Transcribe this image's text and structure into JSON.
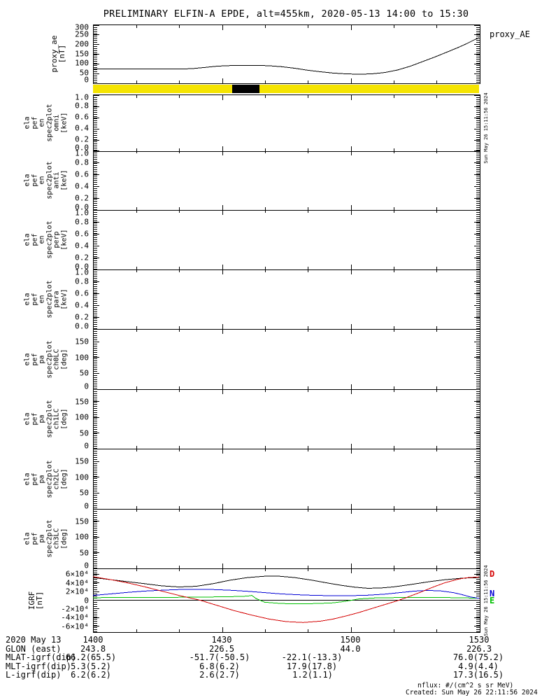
{
  "title": "PRELIMINARY ELFIN-A EPDE, alt=455km, 2020-05-13 14:00 to 15:30",
  "side_timestamp": "Sun May 26 15:11:56 2024",
  "footer": {
    "units_note": "nflux: #/(cm^2 s sr MeV)",
    "created": "Created: Sun May 26 22:11:56 2024"
  },
  "colors": {
    "axis": "#000000",
    "mode_bar_yellow": "#f5e400",
    "mode_bar_segment": "#000000",
    "igrf_total": "#000000",
    "igrf_d": "#d40000",
    "igrf_n": "#0000d4",
    "igrf_e": "#00c000"
  },
  "panels": [
    {
      "id": "proxy_ae",
      "ylabel": [
        "proxy_ae",
        "[nT]"
      ],
      "ylim": [
        0,
        300
      ],
      "right_label": "proxy_AE",
      "yticks": [
        {
          "v": 0,
          "label": "0"
        },
        {
          "v": 50,
          "label": "50"
        },
        {
          "v": 100,
          "label": "100"
        },
        {
          "v": 150,
          "label": "150"
        },
        {
          "v": 200,
          "label": "200"
        },
        {
          "v": 250,
          "label": "250"
        },
        {
          "v": 300,
          "label": "300"
        }
      ]
    },
    {
      "id": "mode_bar",
      "color": "#f5e400",
      "segments": [
        {
          "start_min": 32.4,
          "end_min": 38.8,
          "color": "#000000"
        }
      ]
    },
    {
      "id": "ela_pef_en_spec2plot_omni",
      "ylabel": [
        "ela",
        "pef",
        "en",
        "spec2plot",
        "omni",
        "[keV]"
      ],
      "ylim": [
        0,
        1
      ],
      "yticks": [
        {
          "v": 0,
          "label": "0.0"
        },
        {
          "v": 0.2,
          "label": "0.2"
        },
        {
          "v": 0.4,
          "label": "0.4"
        },
        {
          "v": 0.6,
          "label": "0.6"
        },
        {
          "v": 0.8,
          "label": "0.8"
        },
        {
          "v": 1,
          "label": "1.0"
        }
      ]
    },
    {
      "id": "ela_pef_en_spec2plot_anti",
      "ylabel": [
        "ela",
        "pef",
        "en",
        "spec2plot",
        "anti",
        "[keV]"
      ],
      "ylim": [
        0,
        1
      ],
      "yticks": [
        {
          "v": 0,
          "label": "0.0"
        },
        {
          "v": 0.2,
          "label": "0.2"
        },
        {
          "v": 0.4,
          "label": "0.4"
        },
        {
          "v": 0.6,
          "label": "0.6"
        },
        {
          "v": 0.8,
          "label": "0.8"
        },
        {
          "v": 1,
          "label": "1.0"
        }
      ]
    },
    {
      "id": "ela_pef_en_spec2plot_perp",
      "ylabel": [
        "ela",
        "pef",
        "en",
        "spec2plot",
        "perp",
        "[keV]"
      ],
      "ylim": [
        0,
        1
      ],
      "yticks": [
        {
          "v": 0,
          "label": "0.0"
        },
        {
          "v": 0.2,
          "label": "0.2"
        },
        {
          "v": 0.4,
          "label": "0.4"
        },
        {
          "v": 0.6,
          "label": "0.6"
        },
        {
          "v": 0.8,
          "label": "0.8"
        },
        {
          "v": 1,
          "label": "1.0"
        }
      ]
    },
    {
      "id": "ela_pef_en_spec2plot_para",
      "ylabel": [
        "ela",
        "pef",
        "en",
        "spec2plot",
        "para",
        "[keV]"
      ],
      "ylim": [
        0,
        1
      ],
      "yticks": [
        {
          "v": 0,
          "label": "0.0"
        },
        {
          "v": 0.2,
          "label": "0.2"
        },
        {
          "v": 0.4,
          "label": "0.4"
        },
        {
          "v": 0.6,
          "label": "0.6"
        },
        {
          "v": 0.8,
          "label": "0.8"
        },
        {
          "v": 1,
          "label": "1.0"
        }
      ]
    },
    {
      "id": "ela_pef_pa_spec2plot_ch0LC",
      "ylabel": [
        "ela",
        "pef",
        "pa",
        "spec2plot",
        "ch0LC",
        "[deg]"
      ],
      "ylim": [
        0,
        190
      ],
      "yticks": [
        {
          "v": 0,
          "label": "0"
        },
        {
          "v": 50,
          "label": "50"
        },
        {
          "v": 100,
          "label": "100"
        },
        {
          "v": 150,
          "label": "150"
        }
      ]
    },
    {
      "id": "ela_pef_pa_spec2plot_ch1LC",
      "ylabel": [
        "ela",
        "pef",
        "pa",
        "spec2plot",
        "ch1LC",
        "[deg]"
      ],
      "ylim": [
        0,
        190
      ],
      "yticks": [
        {
          "v": 0,
          "label": "0"
        },
        {
          "v": 50,
          "label": "50"
        },
        {
          "v": 100,
          "label": "100"
        },
        {
          "v": 150,
          "label": "150"
        }
      ]
    },
    {
      "id": "ela_pef_pa_spec2plot_ch2LC",
      "ylabel": [
        "ela",
        "pef",
        "pa",
        "spec2plot",
        "ch2LC",
        "[deg]"
      ],
      "ylim": [
        0,
        190
      ],
      "yticks": [
        {
          "v": 0,
          "label": "0"
        },
        {
          "v": 50,
          "label": "50"
        },
        {
          "v": 100,
          "label": "100"
        },
        {
          "v": 150,
          "label": "150"
        }
      ]
    },
    {
      "id": "ela_pef_pa_spec2plot_ch3LC",
      "ylabel": [
        "ela",
        "pef",
        "pa",
        "spec2plot",
        "ch3LC",
        "[deg]"
      ],
      "ylim": [
        0,
        190
      ],
      "yticks": [
        {
          "v": 0,
          "label": "0"
        },
        {
          "v": 50,
          "label": "50"
        },
        {
          "v": 100,
          "label": "100"
        },
        {
          "v": 150,
          "label": "150"
        }
      ]
    },
    {
      "id": "igrf",
      "ylabel": [
        "IGRF",
        "[nT]"
      ],
      "ylim": [
        -73000,
        73000
      ],
      "yticks": [
        {
          "v": 60000,
          "label": "6×10⁴"
        },
        {
          "v": 40000,
          "label": "4×10⁴"
        },
        {
          "v": 20000,
          "label": "2×10⁴"
        },
        {
          "v": 0,
          "label": "0"
        },
        {
          "v": -20000,
          "label": "-2×10⁴"
        },
        {
          "v": -40000,
          "label": "-4×10⁴"
        },
        {
          "v": -60000,
          "label": "-6×10⁴"
        }
      ],
      "legend": [
        {
          "label": "D",
          "color": "#d40000"
        },
        {
          "label": "N",
          "color": "#0000d4"
        },
        {
          "label": "E",
          "color": "#00c000"
        }
      ]
    }
  ],
  "ephemeris": {
    "rows": [
      {
        "label": "2020 May 13",
        "values": [
          "1400",
          "1430",
          "1500",
          "1530"
        ]
      },
      {
        "label": "GLON (east)",
        "values": [
          "243.8",
          "226.5",
          "44.0",
          "226.3"
        ]
      },
      {
        "label": "MLAT-igrf(dip)",
        "values": [
          "66.2(65.5)",
          "-51.7(-50.5)",
          "-22.1(-13.3)",
          "76.0(75.2)"
        ]
      },
      {
        "label": "MLT-igrf(dip)",
        "values": [
          "5.3(5.2)",
          "6.8(6.2)",
          "17.9(17.8)",
          "4.9(4.4)"
        ]
      },
      {
        "label": "L-igrf(dip)",
        "values": [
          "6.2(6.2)",
          "2.6(2.7)",
          "1.2(1.1)",
          "17.3(16.5)"
        ]
      }
    ]
  },
  "chart_data": [
    {
      "type": "line",
      "title": "proxy_AE",
      "ylabel": "proxy_ae [nT]",
      "ylim": [
        0,
        300
      ],
      "x_unit": "minutes after 2020-05-13 14:00",
      "xticks": {
        "major_minutes": [
          0,
          30,
          60,
          90
        ],
        "labels": [
          "1400",
          "1430",
          "1500",
          "1530"
        ],
        "minor_step_min": 10
      },
      "color": "#000000",
      "x": [
        0,
        5,
        10,
        15,
        20,
        23,
        26,
        29,
        32,
        35,
        38,
        41,
        44,
        47,
        50,
        53,
        56,
        59,
        62,
        65,
        68,
        71,
        74,
        77,
        80,
        83,
        85,
        87,
        89,
        90
      ],
      "values": [
        70,
        70,
        70,
        70,
        70,
        72,
        78,
        85,
        88,
        89,
        89,
        87,
        82,
        74,
        64,
        56,
        49,
        45,
        43,
        45,
        52,
        65,
        85,
        110,
        135,
        162,
        180,
        200,
        222,
        232
      ]
    },
    {
      "type": "line",
      "title": "IGRF [nT]",
      "ylim": [
        -73000,
        73000
      ],
      "x_unit": "minutes after 2020-05-13 14:00",
      "series": [
        {
          "name": "E",
          "color": "#00c000",
          "x": [
            0,
            8,
            16,
            24,
            30,
            34,
            36,
            37,
            38,
            40,
            44,
            48,
            52,
            56,
            58,
            60,
            62,
            66,
            72,
            78,
            84,
            88,
            90
          ],
          "values": [
            6000,
            6200,
            6500,
            7000,
            7800,
            8600,
            9500,
            11000,
            4000,
            -4500,
            -7500,
            -8000,
            -7500,
            -6000,
            -3500,
            -500,
            3000,
            5500,
            6200,
            6500,
            6000,
            5200,
            4800
          ]
        },
        {
          "name": "N",
          "color": "#0000d4",
          "x": [
            0,
            4,
            8,
            12,
            16,
            20,
            24,
            28,
            32,
            36,
            40,
            44,
            48,
            52,
            56,
            60,
            64,
            68,
            72,
            75,
            78,
            81,
            84,
            86,
            88,
            90
          ],
          "values": [
            11000,
            14500,
            18000,
            21000,
            23000,
            24500,
            25000,
            24500,
            23000,
            20500,
            17500,
            14500,
            12500,
            11000,
            10500,
            10500,
            11500,
            14000,
            18000,
            21000,
            22500,
            21500,
            17500,
            13000,
            7500,
            4500
          ]
        },
        {
          "name": "total",
          "color": "#000000",
          "x": [
            0,
            6,
            12,
            16,
            20,
            24,
            28,
            32,
            36,
            40,
            43,
            47,
            51,
            55,
            58,
            61,
            64,
            67,
            70,
            74,
            78,
            82,
            86,
            90
          ],
          "values": [
            52000,
            45000,
            38000,
            33000,
            30500,
            32000,
            38000,
            46000,
            52000,
            55000,
            55500,
            52000,
            46000,
            39000,
            34000,
            30000,
            27500,
            28000,
            30500,
            36000,
            42000,
            47000,
            50500,
            52000
          ]
        },
        {
          "name": "D",
          "color": "#d40000",
          "x": [
            0,
            4,
            8,
            12,
            16,
            20,
            25,
            29,
            33,
            37,
            41,
            45,
            49,
            53,
            56,
            59,
            62,
            65,
            68,
            71,
            73,
            76,
            79,
            82,
            85,
            87,
            90
          ],
          "values": [
            54000,
            47500,
            40000,
            31000,
            21000,
            11000,
            0,
            -12000,
            -24000,
            -34000,
            -43000,
            -49000,
            -51000,
            -48000,
            -43000,
            -36000,
            -28000,
            -19000,
            -10000,
            -1000,
            6000,
            17000,
            29000,
            40000,
            48000,
            51500,
            53500
          ]
        }
      ]
    },
    {
      "type": "bar",
      "title": "science zone mode bar",
      "bar_color": "#f5e400",
      "segments_min": [
        {
          "start": 32.4,
          "end": 38.8,
          "color": "#000000"
        }
      ]
    }
  ]
}
